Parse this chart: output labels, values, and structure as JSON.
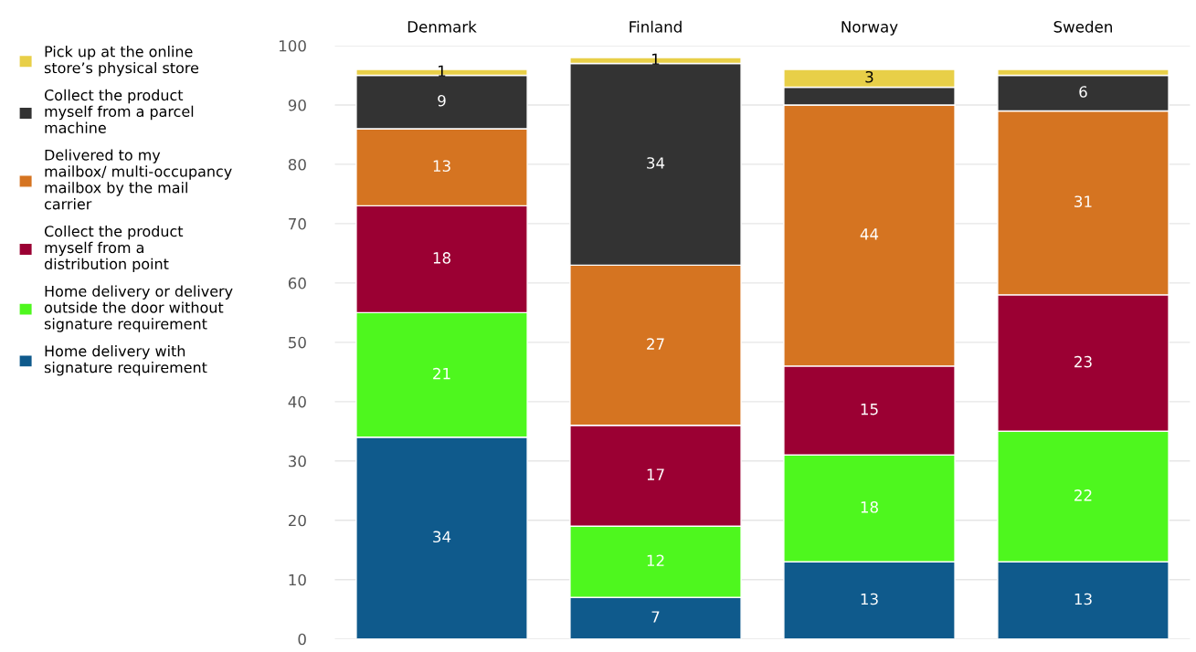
{
  "chart_data": {
    "type": "bar",
    "stacked": true,
    "categories": [
      "Denmark",
      "Finland",
      "Norway",
      "Sweden"
    ],
    "ylim": [
      0,
      100
    ],
    "yticks": [
      0,
      10,
      20,
      30,
      40,
      50,
      60,
      70,
      80,
      90,
      100
    ],
    "grid": "y",
    "legend": "left",
    "series": [
      {
        "name": "Home delivery with signature requirement",
        "color": "#0f5a8c",
        "values": [
          34,
          7,
          13,
          13
        ],
        "value_labels": [
          "34",
          "7",
          "13",
          "13"
        ]
      },
      {
        "name": "Home delivery or delivery outside the door without signature requirement",
        "color": "#4ef71e",
        "values": [
          21,
          12,
          18,
          22
        ],
        "value_labels": [
          "21",
          "12",
          "18",
          "22"
        ]
      },
      {
        "name": "Collect the product myself from a distribution point",
        "color": "#9b0033",
        "values": [
          18,
          17,
          15,
          23
        ],
        "value_labels": [
          "18",
          "17",
          "15",
          "23"
        ]
      },
      {
        "name": "Delivered to my mailbox/ multi-occupancy mailbox by the mail carrier",
        "color": "#d57421",
        "values": [
          13,
          27,
          44,
          31
        ],
        "value_labels": [
          "13",
          "27",
          "44",
          "31"
        ]
      },
      {
        "name": "Collect the product myself from a parcel machine",
        "color": "#333333",
        "values": [
          9,
          34,
          3,
          6
        ],
        "value_labels": [
          "9",
          "34",
          null,
          "6"
        ]
      },
      {
        "name": "Pick up at the online store’s physical store",
        "color": "#e8cf48",
        "values": [
          1,
          1,
          3,
          1
        ],
        "value_labels": [
          "1",
          "1",
          "3",
          null
        ]
      }
    ]
  }
}
